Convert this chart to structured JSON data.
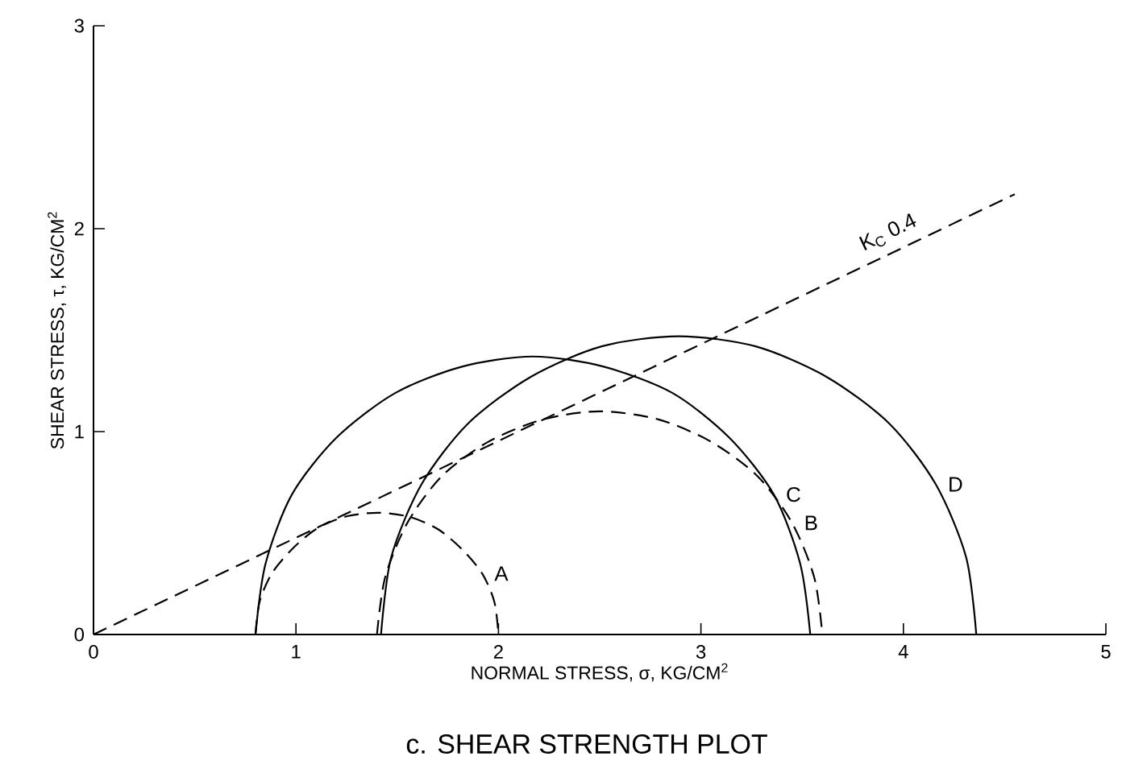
{
  "chart_data": {
    "type": "line",
    "title": "c. SHEAR STRENGTH PLOT",
    "xlabel": "NORMAL STRESS, σ, KG/CM$^{2}$",
    "ylabel": "SHEAR STRESS, τ, KG/CM$^{2}$",
    "xlim": [
      0,
      5
    ],
    "ylim": [
      0,
      3
    ],
    "xticks": [
      0,
      1,
      2,
      3,
      4,
      5
    ],
    "yticks": [
      0,
      1,
      2,
      3
    ],
    "grid": false,
    "legend": false,
    "marker": "none",
    "series": [
      {
        "name": "A",
        "color": "#000000",
        "line_style": "dashed",
        "x": [
          0.8,
          0.82,
          0.88,
          0.98,
          1.1,
          1.24,
          1.4,
          1.56,
          1.7,
          1.82,
          1.92,
          1.98,
          2.0
        ],
        "values": [
          0,
          0.16,
          0.3,
          0.42,
          0.52,
          0.58,
          0.6,
          0.58,
          0.52,
          0.42,
          0.3,
          0.16,
          0
        ]
      },
      {
        "name": "B",
        "color": "#000000",
        "line_style": "dashed",
        "x": [
          1.4,
          1.44,
          1.55,
          1.72,
          1.95,
          2.22,
          2.5,
          2.79,
          3.05,
          3.28,
          3.45,
          3.56,
          3.6
        ],
        "values": [
          0,
          0.28,
          0.55,
          0.78,
          0.95,
          1.06,
          1.1,
          1.06,
          0.95,
          0.78,
          0.55,
          0.28,
          0
        ]
      },
      {
        "name": "C",
        "color": "#000000",
        "line_style": "solid",
        "x": [
          0.8,
          0.85,
          0.98,
          1.2,
          1.49,
          1.82,
          2.17,
          2.52,
          2.86,
          3.14,
          3.36,
          3.49,
          3.54
        ],
        "values": [
          0,
          0.35,
          0.69,
          0.97,
          1.19,
          1.32,
          1.37,
          1.32,
          1.19,
          0.97,
          0.69,
          0.35,
          0
        ]
      },
      {
        "name": "D",
        "color": "#000000",
        "line_style": "solid",
        "x": [
          1.42,
          1.47,
          1.62,
          1.85,
          2.16,
          2.51,
          2.89,
          3.27,
          3.62,
          3.93,
          4.16,
          4.31,
          4.36
        ],
        "values": [
          0,
          0.38,
          0.74,
          1.04,
          1.27,
          1.42,
          1.47,
          1.42,
          1.27,
          1.04,
          0.74,
          0.38,
          0
        ]
      },
      {
        "name": "K$_{C}$  0.4",
        "color": "#000000",
        "line_style": "dashed",
        "x": [
          0,
          4.55
        ],
        "values": [
          0,
          2.17
        ]
      }
    ]
  }
}
